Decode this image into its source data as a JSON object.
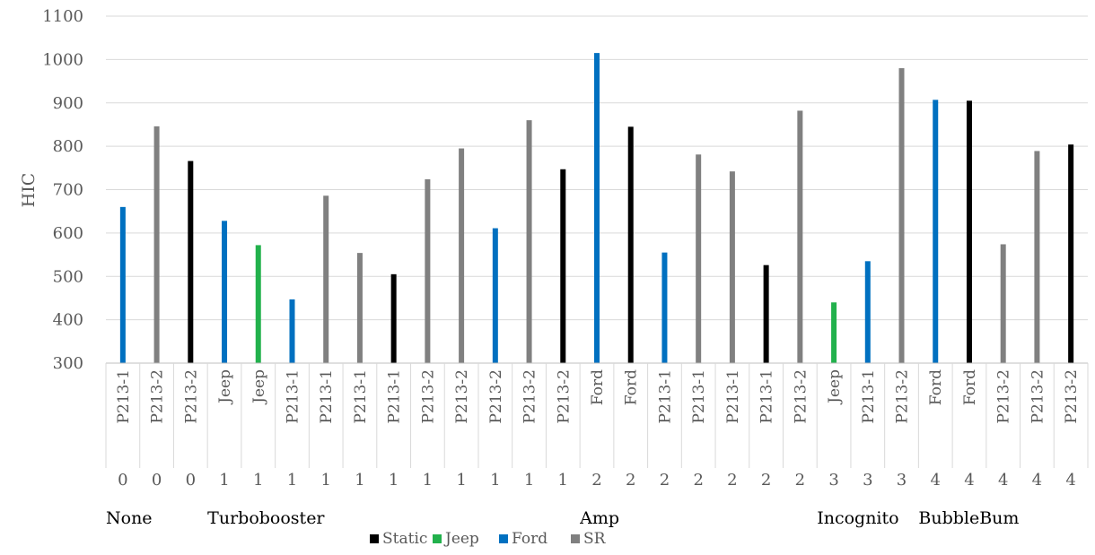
{
  "chart_data": {
    "type": "bar",
    "ylabel": "HIC",
    "ylim": [
      300,
      1100
    ],
    "yticks": [
      300,
      400,
      500,
      600,
      700,
      800,
      900,
      1000,
      1100
    ],
    "grid": true,
    "legend_position": "bottom",
    "legend": [
      {
        "name": "Static",
        "color": "#000000"
      },
      {
        "name": "Jeep",
        "color": "#22b14c"
      },
      {
        "name": "Ford",
        "color": "#0070c0"
      },
      {
        "name": "SR",
        "color": "#808080"
      }
    ],
    "categories": [
      {
        "label": "P213-1",
        "num": "0",
        "value": 660,
        "series": "Ford"
      },
      {
        "label": "P213-2",
        "num": "0",
        "value": 846,
        "series": "SR"
      },
      {
        "label": "P213-2",
        "num": "0",
        "value": 766,
        "series": "Static"
      },
      {
        "label": "Jeep",
        "num": "1",
        "value": 628,
        "series": "Ford"
      },
      {
        "label": "Jeep",
        "num": "1",
        "value": 572,
        "series": "Jeep"
      },
      {
        "label": "P213-1",
        "num": "1",
        "value": 447,
        "series": "Ford"
      },
      {
        "label": "P213-1",
        "num": "1",
        "value": 686,
        "series": "SR"
      },
      {
        "label": "P213-1",
        "num": "1",
        "value": 554,
        "series": "SR"
      },
      {
        "label": "P213-1",
        "num": "1",
        "value": 505,
        "series": "Static"
      },
      {
        "label": "P213-2",
        "num": "1",
        "value": 724,
        "series": "SR"
      },
      {
        "label": "P213-2",
        "num": "1",
        "value": 795,
        "series": "SR"
      },
      {
        "label": "P213-2",
        "num": "1",
        "value": 611,
        "series": "Ford"
      },
      {
        "label": "P213-2",
        "num": "1",
        "value": 860,
        "series": "SR"
      },
      {
        "label": "P213-2",
        "num": "1",
        "value": 747,
        "series": "Static"
      },
      {
        "label": "Ford",
        "num": "2",
        "value": 1015,
        "series": "Ford"
      },
      {
        "label": "Ford",
        "num": "2",
        "value": 845,
        "series": "Static"
      },
      {
        "label": "P213-1",
        "num": "2",
        "value": 555,
        "series": "Ford"
      },
      {
        "label": "P213-1",
        "num": "2",
        "value": 781,
        "series": "SR"
      },
      {
        "label": "P213-1",
        "num": "2",
        "value": 742,
        "series": "SR"
      },
      {
        "label": "P213-1",
        "num": "2",
        "value": 526,
        "series": "Static"
      },
      {
        "label": "P213-2",
        "num": "2",
        "value": 882,
        "series": "SR"
      },
      {
        "label": "Jeep",
        "num": "3",
        "value": 440,
        "series": "Jeep"
      },
      {
        "label": "P213-1",
        "num": "3",
        "value": 535,
        "series": "Ford"
      },
      {
        "label": "P213-2",
        "num": "3",
        "value": 980,
        "series": "SR"
      },
      {
        "label": "Ford",
        "num": "4",
        "value": 907,
        "series": "Ford"
      },
      {
        "label": "Ford",
        "num": "4",
        "value": 905,
        "series": "Static"
      },
      {
        "label": "P213-2",
        "num": "4",
        "value": 574,
        "series": "SR"
      },
      {
        "label": "P213-2",
        "num": "4",
        "value": 789,
        "series": "SR"
      },
      {
        "label": "P213-2",
        "num": "4",
        "value": 804,
        "series": "Static"
      }
    ],
    "groups": [
      {
        "label": "None",
        "start": 0
      },
      {
        "label": "Turbobooster",
        "start": 3
      },
      {
        "label": "Amp",
        "start": 14
      },
      {
        "label": "Incognito",
        "start": 21
      },
      {
        "label": "BubbleBum",
        "start": 24
      }
    ]
  }
}
